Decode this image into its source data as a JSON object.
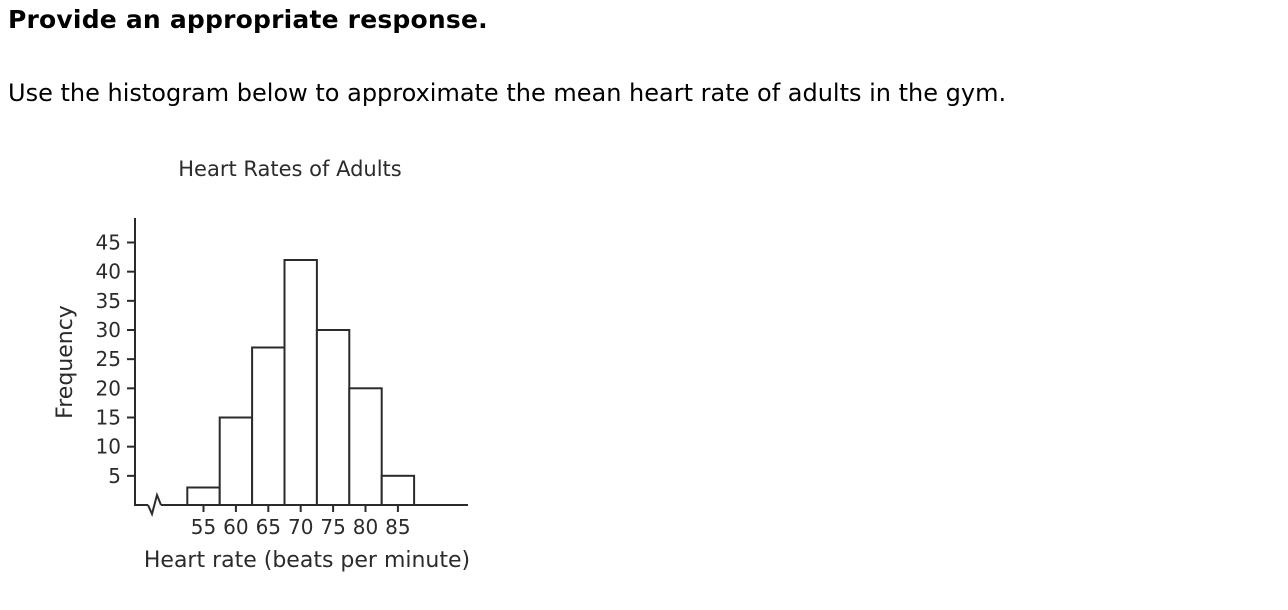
{
  "page": {
    "heading": "Provide an appropriate response.",
    "question": "Use the histogram below to approximate the mean heart rate of adults in the gym."
  },
  "chart_data": {
    "type": "bar",
    "subtype": "histogram",
    "title": "Heart Rates of Adults",
    "xlabel": "Heart rate (beats per minute)",
    "ylabel": "Frequency",
    "categories": [
      55,
      60,
      65,
      70,
      75,
      80,
      85
    ],
    "values": [
      3,
      15,
      27,
      42,
      30,
      20,
      5
    ],
    "bin_width": 5,
    "y_ticks": [
      5,
      10,
      15,
      20,
      25,
      30,
      35,
      40,
      45
    ],
    "ylim": [
      0,
      49
    ],
    "x_axis_break": true,
    "grid": false,
    "legend": false,
    "bar_fill": "#ffffff",
    "stroke_color": "#2b2b2b"
  }
}
